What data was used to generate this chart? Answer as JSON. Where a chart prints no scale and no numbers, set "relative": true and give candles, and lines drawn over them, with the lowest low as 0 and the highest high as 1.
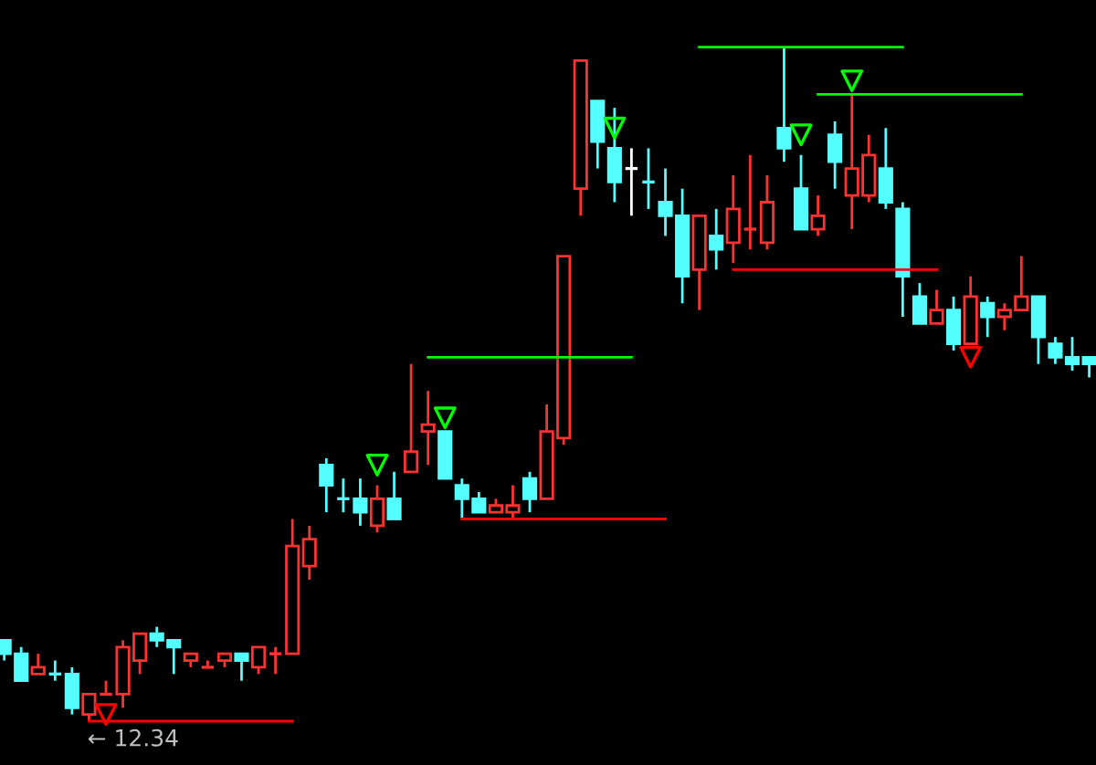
{
  "chart_data": {
    "type": "candlestick",
    "relative": true,
    "categories": [
      null,
      null,
      null,
      null,
      null,
      null,
      null,
      null,
      null,
      null,
      null,
      null,
      null,
      null,
      null,
      null,
      null,
      null,
      null,
      null,
      null,
      null,
      null,
      null,
      null,
      null,
      null,
      null,
      null,
      null,
      null,
      null,
      null,
      null,
      null,
      null,
      null,
      null,
      null,
      null,
      null,
      null,
      null,
      null,
      null,
      null,
      null,
      null,
      null,
      null,
      null,
      null,
      null,
      null,
      null,
      null,
      null,
      null,
      null,
      null,
      null,
      null,
      null,
      null,
      null
    ],
    "annotations": [
      {
        "text": "← 12.34",
        "y": 0
      }
    ],
    "series": [
      {
        "ohlc": [
          [
            0.12,
            0.12,
            0.09,
            0.1
          ],
          [
            0.1,
            0.11,
            0.06,
            0.06
          ],
          [
            0.07,
            0.1,
            0.07,
            0.08
          ],
          [
            0.07,
            0.09,
            0.06,
            0.07
          ],
          [
            0.07,
            0.08,
            0.01,
            0.02
          ],
          [
            0.01,
            0.04,
            0,
            0.04
          ],
          [
            0.04,
            0.06,
            0.04,
            0.04
          ],
          [
            0.04,
            0.12,
            0.02,
            0.11
          ],
          [
            0.09,
            0.13,
            0.07,
            0.13
          ],
          [
            0.13,
            0.14,
            0.11,
            0.12
          ],
          [
            0.12,
            0.12,
            0.07,
            0.11
          ],
          [
            0.09,
            0.1,
            0.08,
            0.1
          ],
          [
            0.08,
            0.09,
            0.08,
            0.08
          ],
          [
            0.09,
            0.1,
            0.08,
            0.1
          ],
          [
            0.1,
            0.1,
            0.06,
            0.09
          ],
          [
            0.08,
            0.11,
            0.07,
            0.11
          ],
          [
            0.1,
            0.11,
            0.07,
            0.1
          ],
          [
            0.1,
            0.3,
            0.1,
            0.26
          ],
          [
            0.23,
            0.29,
            0.21,
            0.27
          ],
          [
            0.38,
            0.39,
            0.31,
            0.35
          ],
          [
            0.33,
            0.36,
            0.31,
            0.33
          ],
          [
            0.33,
            0.36,
            0.29,
            0.31
          ],
          [
            0.29,
            0.35,
            0.28,
            0.33
          ],
          [
            0.33,
            0.37,
            0.3,
            0.3
          ],
          [
            0.37,
            0.53,
            0.37,
            0.4
          ],
          [
            0.43,
            0.49,
            0.38,
            0.44
          ],
          [
            0.43,
            0.43,
            0.36,
            0.36
          ],
          [
            0.35,
            0.36,
            0.3,
            0.33
          ],
          [
            0.33,
            0.34,
            0.31,
            0.31
          ],
          [
            0.31,
            0.33,
            0.31,
            0.32
          ],
          [
            0.31,
            0.35,
            0.3,
            0.32
          ],
          [
            0.36,
            0.37,
            0.31,
            0.33
          ],
          [
            0.33,
            0.47,
            0.33,
            0.43
          ],
          [
            0.42,
            0.69,
            0.41,
            0.69
          ],
          [
            0.79,
            0.98,
            0.75,
            0.98
          ],
          [
            0.92,
            0.92,
            0.82,
            0.86
          ],
          [
            0.85,
            0.91,
            0.77,
            0.8
          ],
          [
            0.82,
            0.85,
            0.75,
            0.82
          ],
          [
            0.8,
            0.85,
            0.76,
            0.8
          ],
          [
            0.77,
            0.82,
            0.72,
            0.75
          ],
          [
            0.75,
            0.79,
            0.62,
            0.66
          ],
          [
            0.67,
            0.75,
            0.61,
            0.75
          ],
          [
            0.72,
            0.76,
            0.67,
            0.7
          ],
          [
            0.71,
            0.81,
            0.68,
            0.76
          ],
          [
            0.73,
            0.84,
            0.7,
            0.73
          ],
          [
            0.71,
            0.81,
            0.7,
            0.77
          ],
          [
            0.88,
            1,
            0.83,
            0.85
          ],
          [
            0.79,
            0.84,
            0.73,
            0.73
          ],
          [
            0.73,
            0.78,
            0.72,
            0.75
          ],
          [
            0.87,
            0.89,
            0.79,
            0.83
          ],
          [
            0.78,
            0.93,
            0.73,
            0.82
          ],
          [
            0.78,
            0.87,
            0.77,
            0.84
          ],
          [
            0.82,
            0.88,
            0.76,
            0.77
          ],
          [
            0.76,
            0.77,
            0.6,
            0.66
          ],
          [
            0.63,
            0.65,
            0.59,
            0.59
          ],
          [
            0.59,
            0.64,
            0.59,
            0.61
          ],
          [
            0.61,
            0.63,
            0.55,
            0.56
          ],
          [
            0.56,
            0.66,
            0.56,
            0.63
          ],
          [
            0.62,
            0.63,
            0.57,
            0.6
          ],
          [
            0.6,
            0.62,
            0.58,
            0.61
          ],
          [
            0.61,
            0.69,
            0.61,
            0.63
          ],
          [
            0.63,
            0.63,
            0.53,
            0.57
          ],
          [
            0.56,
            0.57,
            0.53,
            0.54
          ],
          [
            0.54,
            0.57,
            0.52,
            0.53
          ],
          [
            0.54,
            0.54,
            0.51,
            0.53
          ]
        ],
        "colors": [
          "#54ffff",
          "#54ffff",
          "#ff3232",
          "#54ffff",
          "#54ffff",
          "#ff3232",
          "#ff3232",
          "#ff3232",
          "#ff3232",
          "#54ffff",
          "#54ffff",
          "#ff3232",
          "#ff3232",
          "#ff3232",
          "#54ffff",
          "#ff3232",
          "#ff3232",
          "#ff3232",
          "#ff3232",
          "#54ffff",
          "#54ffff",
          "#54ffff",
          "#ff3232",
          "#54ffff",
          "#ff3232",
          "#ff3232",
          "#54ffff",
          "#54ffff",
          "#54ffff",
          "#ff3232",
          "#ff3232",
          "#54ffff",
          "#ff3232",
          "#ff3232",
          "#ff3232",
          "#54ffff",
          "#54ffff",
          "#ffffff",
          "#54ffff",
          "#54ffff",
          "#54ffff",
          "#ff3232",
          "#54ffff",
          "#ff3232",
          "#ff3232",
          "#ff3232",
          "#54ffff",
          "#54ffff",
          "#ff3232",
          "#54ffff",
          "#ff3232",
          "#ff3232",
          "#54ffff",
          "#54ffff",
          "#54ffff",
          "#ff3232",
          "#54ffff",
          "#ff3232",
          "#54ffff",
          "#ff3232",
          "#ff3232",
          "#54ffff",
          "#54ffff",
          "#54ffff",
          "#54ffff"
        ]
      },
      {
        "type": "line",
        "color": "#00ff00",
        "values": [
          null,
          null,
          null,
          null,
          null,
          null,
          null,
          null,
          null,
          null,
          null,
          null,
          null,
          null,
          null,
          null,
          null,
          null,
          null,
          null,
          null,
          null,
          null,
          null,
          null,
          null,
          null,
          null,
          null,
          null,
          null,
          null,
          null,
          null,
          null,
          null,
          null,
          null,
          null,
          null,
          null,
          1,
          1,
          1,
          1,
          1,
          1,
          1,
          1,
          1,
          1,
          1,
          1,
          1,
          null,
          null,
          null,
          null,
          null,
          null,
          null,
          null,
          null,
          null,
          null
        ]
      },
      {
        "type": "line",
        "color": "#00ff00",
        "values": [
          null,
          null,
          null,
          null,
          null,
          null,
          null,
          null,
          null,
          null,
          null,
          null,
          null,
          null,
          null,
          null,
          null,
          null,
          null,
          null,
          null,
          null,
          null,
          null,
          null,
          null,
          null,
          null,
          null,
          null,
          null,
          null,
          null,
          null,
          null,
          null,
          null,
          null,
          null,
          null,
          null,
          null,
          null,
          null,
          null,
          null,
          null,
          null,
          0.93,
          0.93,
          0.93,
          0.93,
          0.93,
          0.93,
          0.93,
          0.93,
          0.93,
          0.93,
          0.93,
          0.93,
          0.93,
          null,
          null,
          null,
          null
        ]
      },
      {
        "type": "line",
        "color": "#00ff00",
        "values": [
          null,
          null,
          null,
          null,
          null,
          null,
          null,
          null,
          null,
          null,
          null,
          null,
          null,
          null,
          null,
          null,
          null,
          null,
          null,
          null,
          null,
          null,
          null,
          null,
          null,
          0.54,
          0.54,
          0.54,
          0.54,
          0.54,
          0.54,
          0.54,
          0.54,
          0.54,
          0.54,
          0.54,
          0.54,
          0.54,
          null,
          null,
          null,
          null,
          null,
          null,
          null,
          null,
          null,
          null,
          null,
          null,
          null,
          null,
          null,
          null,
          null,
          null,
          null,
          null,
          null,
          null,
          null,
          null,
          null,
          null,
          null
        ]
      },
      {
        "type": "line",
        "color": "#ff0000",
        "values": [
          null,
          null,
          null,
          null,
          null,
          0,
          0,
          0,
          0,
          0,
          0,
          0,
          0,
          0,
          0,
          0,
          0,
          0,
          null,
          null,
          null,
          null,
          null,
          null,
          null,
          null,
          null,
          null,
          null,
          null,
          null,
          null,
          null,
          null,
          null,
          null,
          null,
          null,
          null,
          null,
          null,
          null,
          null,
          null,
          null,
          null,
          null,
          null,
          null,
          null,
          null,
          null,
          null,
          null,
          null,
          null,
          null,
          null,
          null,
          null,
          null,
          null,
          null,
          null,
          null
        ]
      },
      {
        "type": "line",
        "color": "#ff0000",
        "values": [
          null,
          null,
          null,
          null,
          null,
          null,
          null,
          null,
          null,
          null,
          null,
          null,
          null,
          null,
          null,
          null,
          null,
          null,
          null,
          null,
          null,
          null,
          null,
          null,
          null,
          null,
          null,
          0.3,
          0.3,
          0.3,
          0.3,
          0.3,
          0.3,
          0.3,
          0.3,
          0.3,
          0.3,
          0.3,
          0.3,
          0.3,
          null,
          null,
          null,
          null,
          null,
          null,
          null,
          null,
          null,
          null,
          null,
          null,
          null,
          null,
          null,
          null,
          null,
          null,
          null,
          null,
          null,
          null,
          null,
          null,
          null
        ]
      },
      {
        "type": "line",
        "color": "#ff0000",
        "values": [
          null,
          null,
          null,
          null,
          null,
          null,
          null,
          null,
          null,
          null,
          null,
          null,
          null,
          null,
          null,
          null,
          null,
          null,
          null,
          null,
          null,
          null,
          null,
          null,
          null,
          null,
          null,
          null,
          null,
          null,
          null,
          null,
          null,
          null,
          null,
          null,
          null,
          null,
          null,
          null,
          null,
          null,
          null,
          0.67,
          0.67,
          0.67,
          0.67,
          0.67,
          0.67,
          0.67,
          0.67,
          0.67,
          0.67,
          0.67,
          0.67,
          0.67,
          null,
          null,
          null,
          null,
          null,
          null,
          null,
          null,
          null
        ]
      },
      {
        "type": "scatter",
        "marker": "triangle",
        "color": "#00ff00",
        "values": [
          null,
          null,
          null,
          null,
          null,
          null,
          null,
          null,
          null,
          null,
          null,
          null,
          null,
          null,
          null,
          null,
          null,
          null,
          null,
          null,
          null,
          null,
          0.38,
          null,
          null,
          null,
          0.45,
          null,
          null,
          null,
          null,
          null,
          null,
          null,
          null,
          null,
          0.88,
          null,
          null,
          null,
          null,
          null,
          null,
          null,
          null,
          null,
          null,
          0.87,
          null,
          null,
          0.95,
          null,
          null,
          null,
          null,
          null,
          null,
          null,
          null,
          null,
          null,
          null,
          null,
          null,
          null
        ]
      },
      {
        "type": "scatter",
        "marker": "triangle",
        "color": "#ff0000",
        "values": [
          null,
          null,
          null,
          null,
          null,
          null,
          0.01,
          null,
          null,
          null,
          null,
          null,
          null,
          null,
          null,
          null,
          null,
          null,
          null,
          null,
          null,
          null,
          null,
          null,
          null,
          null,
          null,
          null,
          null,
          null,
          null,
          null,
          null,
          null,
          null,
          null,
          null,
          null,
          null,
          null,
          null,
          null,
          null,
          null,
          null,
          null,
          null,
          null,
          null,
          null,
          null,
          null,
          null,
          null,
          null,
          null,
          null,
          0.54,
          null,
          null,
          null,
          null,
          null,
          null,
          null
        ]
      }
    ]
  }
}
